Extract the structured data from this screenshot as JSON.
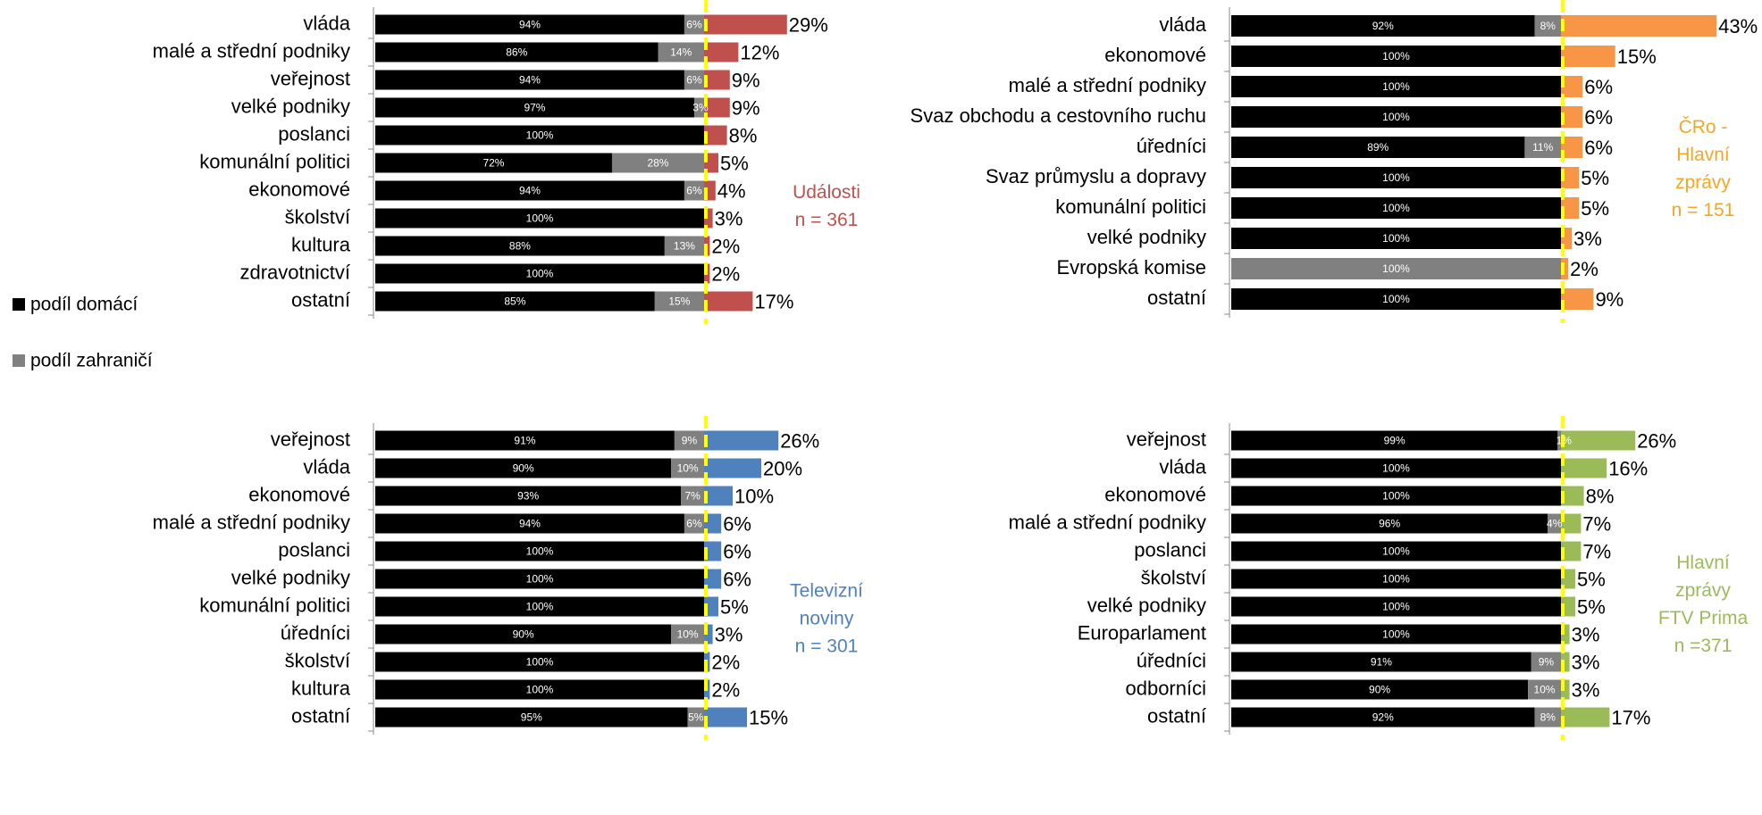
{
  "legend": [
    {
      "label": "podíl domácí",
      "color": "#000000"
    },
    {
      "label": "podíl zahraničí",
      "color": "#808080"
    }
  ],
  "chart_data": [
    {
      "type": "bar",
      "title_lines": [
        "Události",
        "n = 361"
      ],
      "accent_color": "#C0504D",
      "categories": [
        "vláda",
        "malé a střední podniky",
        "veřejnost",
        "velké podniky",
        "poslanci",
        "komunální politici",
        "ekonomové",
        "školství",
        "kultura",
        "zdravotnictví",
        "ostatní"
      ],
      "domestic": [
        94,
        86,
        94,
        97,
        100,
        72,
        94,
        100,
        88,
        100,
        85
      ],
      "domestic_labels": [
        "94%",
        "86%",
        "94%",
        "97%",
        "100%",
        "72%",
        "94%",
        "100%",
        "88%",
        "100%",
        "85%"
      ],
      "foreign_labels": [
        "6%",
        "14%",
        "6%",
        "3%",
        "",
        "28%",
        "6%",
        "",
        "13%",
        "",
        ""
      ],
      "foreign_labels_2": [
        "",
        "",
        "",
        "",
        "",
        "",
        "",
        "",
        "",
        "",
        "15%"
      ],
      "totals": [
        29,
        12,
        9,
        9,
        8,
        5,
        4,
        3,
        2,
        2,
        17
      ],
      "total_labels": [
        "29%",
        "12%",
        "9%",
        "9%",
        "8%",
        "5%",
        "4%",
        "3%",
        "2%",
        "2%",
        "17%"
      ]
    },
    {
      "type": "bar",
      "title_lines": [
        "ČRo -",
        "Hlavní",
        "zprávy",
        "n = 151"
      ],
      "accent_color": "#F79646",
      "title_color": "#F6A623",
      "categories": [
        "vláda",
        "ekonomové",
        "malé a střední podniky",
        "Svaz obchodu a cestovního ruchu",
        "úředníci",
        "Svaz průmyslu a dopravy",
        "komunální politici",
        "velké podniky",
        "Evropská komise",
        "ostatní"
      ],
      "domestic": [
        92,
        100,
        100,
        100,
        89,
        100,
        100,
        100,
        0,
        100
      ],
      "domestic_labels": [
        "92%",
        "100%",
        "100%",
        "100%",
        "89%",
        "100%",
        "100%",
        "100%",
        "",
        "100%"
      ],
      "foreign_labels": [
        "8%",
        "",
        "",
        "",
        "11%",
        "",
        "",
        "",
        "100%",
        ""
      ],
      "totals": [
        43,
        15,
        6,
        6,
        6,
        5,
        5,
        3,
        2,
        9
      ],
      "total_labels": [
        "43%",
        "15%",
        "6%",
        "6%",
        "6%",
        "5%",
        "5%",
        "3%",
        "2%",
        "9%"
      ]
    },
    {
      "type": "bar",
      "title_lines": [
        "Televizní",
        "noviny",
        "n  = 301"
      ],
      "accent_color": "#4F81BD",
      "categories": [
        "veřejnost",
        "vláda",
        "ekonomové",
        "malé a střední podniky",
        "poslanci",
        "velké podniky",
        "komunální politici",
        "úředníci",
        "školství",
        "kultura",
        "ostatní"
      ],
      "domestic": [
        91,
        90,
        93,
        94,
        100,
        100,
        100,
        90,
        100,
        100,
        95
      ],
      "domestic_labels": [
        "91%",
        "90%",
        "93%",
        "94%",
        "100%",
        "100%",
        "100%",
        "90%",
        "100%",
        "100%",
        "95%"
      ],
      "foreign_labels": [
        "9%",
        "10%",
        "7%",
        "6%",
        "",
        "",
        "",
        "10%",
        "",
        "",
        "5%"
      ],
      "totals": [
        26,
        20,
        10,
        6,
        6,
        6,
        5,
        3,
        2,
        2,
        15
      ],
      "total_labels": [
        "26%",
        "20%",
        "10%",
        "6%",
        "6%",
        "6%",
        "5%",
        "3%",
        "2%",
        "2%",
        "15%"
      ]
    },
    {
      "type": "bar",
      "title_lines": [
        "Hlavní",
        "zprávy",
        "FTV Prima",
        "n =371"
      ],
      "accent_color": "#9BBB59",
      "categories": [
        "veřejnost",
        "vláda",
        "ekonomové",
        "malé a střední podniky",
        "poslanci",
        "školství",
        "velké podniky",
        "Europarlament",
        "úředníci",
        "odborníci",
        "ostatní"
      ],
      "domestic": [
        99,
        100,
        100,
        96,
        100,
        100,
        100,
        100,
        91,
        90,
        92
      ],
      "domestic_labels": [
        "99%",
        "100%",
        "100%",
        "96%",
        "100%",
        "100%",
        "100%",
        "100%",
        "91%",
        "90%",
        "92%"
      ],
      "foreign_labels": [
        "1%",
        "",
        "",
        "4%",
        "",
        "",
        "",
        "",
        "9%",
        "10%",
        "8%"
      ],
      "totals": [
        26,
        16,
        8,
        7,
        7,
        5,
        5,
        3,
        3,
        3,
        17
      ],
      "total_labels": [
        "26%",
        "16%",
        "8%",
        "7%",
        "7%",
        "5%",
        "5%",
        "3%",
        "3%",
        "3%",
        "17%"
      ]
    }
  ]
}
